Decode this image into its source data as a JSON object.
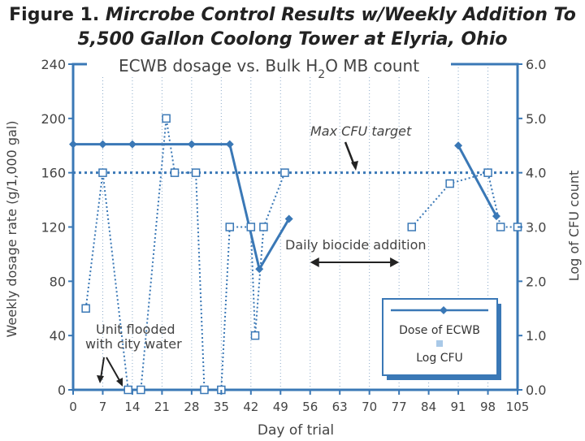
{
  "figure": {
    "title_prefix": "Figure 1.",
    "title_line1": "Mircrobe Control Results w/Weekly Addition To",
    "title_line2": "5,500 Gallon Coolong Tower at Elyria, Ohio"
  },
  "chart_data": {
    "type": "line",
    "inner_title": "ECWB dosage vs. Bulk H2O MB count",
    "inner_title_parts": [
      "ECWB dosage vs. Bulk H",
      "2",
      "O MB count"
    ],
    "xlabel": "Day of trial",
    "ylabel_left": "Weekly dosage rate (g/1,000 gal)",
    "ylabel_right": "Log of CFU count",
    "x_ticks": [
      0,
      7,
      14,
      21,
      28,
      35,
      42,
      49,
      56,
      63,
      70,
      77,
      84,
      91,
      98,
      105
    ],
    "xlim": [
      0,
      105
    ],
    "y_left_ticks": [
      0,
      40,
      80,
      120,
      160,
      200,
      240
    ],
    "y_left_lim": [
      0,
      240
    ],
    "y_right_ticks": [
      "0.0",
      "1.0",
      "2.0",
      "3.0",
      "4.0",
      "5.0",
      "6.0"
    ],
    "y_right_lim": [
      0,
      6
    ],
    "grid": "vertical dotted",
    "colors": {
      "series": "#3a78b6",
      "frame": "#3a78b6",
      "text": "#444444"
    },
    "series": [
      {
        "name": "Dose of ECWB",
        "axis": "left",
        "marker": "diamond",
        "segments": [
          [
            [
              0,
              181
            ],
            [
              7,
              181
            ],
            [
              14,
              181
            ],
            [
              28,
              181
            ],
            [
              37,
              181
            ],
            [
              44,
              89
            ],
            [
              51,
              126
            ]
          ],
          [
            [
              91,
              180
            ],
            [
              100,
              128
            ]
          ]
        ]
      },
      {
        "name": "Log CFU",
        "axis": "right",
        "marker": "square",
        "segments": [
          [
            [
              3,
              1.5
            ],
            [
              7,
              4.0
            ],
            [
              13,
              0.0
            ],
            [
              16,
              0.0
            ],
            [
              22,
              5.0
            ],
            [
              24,
              4.0
            ],
            [
              29,
              4.0
            ],
            [
              31,
              0.0
            ],
            [
              35,
              0.0
            ],
            [
              37,
              3.0
            ],
            [
              42,
              3.0
            ],
            [
              43,
              1.0
            ],
            [
              45,
              3.0
            ],
            [
              50,
              4.0
            ]
          ],
          [
            [
              80,
              3.0
            ],
            [
              89,
              3.8
            ],
            [
              98,
              4.0
            ],
            [
              101,
              3.0
            ],
            [
              105,
              3.0
            ]
          ]
        ]
      }
    ],
    "reference_line": {
      "label": "Max CFU target",
      "axis": "left",
      "value": 160
    },
    "annotations": {
      "daily_biocide": {
        "text": "Daily biocide addition",
        "x_start": 56,
        "x_end": 77
      },
      "unit_flooded": {
        "line1": "Unit flooded",
        "line2": "with city water"
      }
    },
    "legend": {
      "position": "bottom-right",
      "entries": [
        "Dose of ECWB",
        "Log CFU"
      ]
    }
  }
}
